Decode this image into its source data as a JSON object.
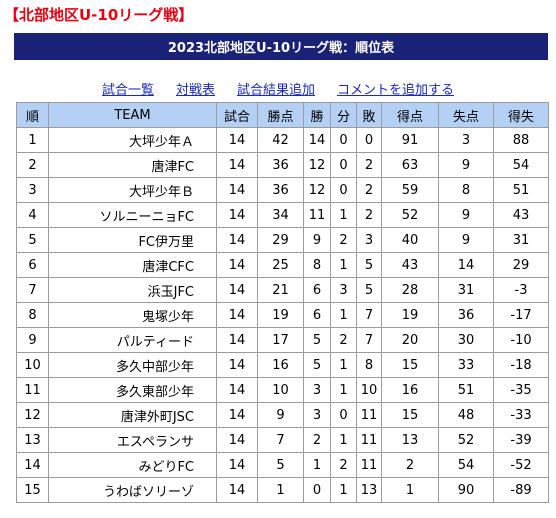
{
  "page_title": "【北部地区U-10リーグ戦】",
  "banner_title": "2023北部地区U-10リーグ戦：順位表",
  "links": [
    "試合一覧",
    "対戦表",
    "試合結果追加",
    "コメントを追加する"
  ],
  "columns": [
    "順",
    "TEAM",
    "試合",
    "勝点",
    "勝",
    "分",
    "敗",
    "得点",
    "失点",
    "得失"
  ],
  "rows": [
    [
      "1",
      "大坪少年Ａ",
      "14",
      "42",
      "14",
      "0",
      "0",
      "91",
      "3",
      "88"
    ],
    [
      "2",
      "唐津FC",
      "14",
      "36",
      "12",
      "0",
      "2",
      "63",
      "9",
      "54"
    ],
    [
      "3",
      "大坪少年Ｂ",
      "14",
      "36",
      "12",
      "0",
      "2",
      "59",
      "8",
      "51"
    ],
    [
      "4",
      "ソルニーニョFC",
      "14",
      "34",
      "11",
      "1",
      "2",
      "52",
      "9",
      "43"
    ],
    [
      "5",
      "FC伊万里",
      "14",
      "29",
      "9",
      "2",
      "3",
      "40",
      "9",
      "31"
    ],
    [
      "6",
      "唐津CFC",
      "14",
      "25",
      "8",
      "1",
      "5",
      "43",
      "14",
      "29"
    ],
    [
      "7",
      "浜玉JFC",
      "14",
      "21",
      "6",
      "3",
      "5",
      "28",
      "31",
      "-3"
    ],
    [
      "8",
      "鬼塚少年",
      "14",
      "19",
      "6",
      "1",
      "7",
      "19",
      "36",
      "-17"
    ],
    [
      "9",
      "パルティード",
      "14",
      "17",
      "5",
      "2",
      "7",
      "20",
      "30",
      "-10"
    ],
    [
      "10",
      "多久中部少年",
      "14",
      "16",
      "5",
      "1",
      "8",
      "15",
      "33",
      "-18"
    ],
    [
      "11",
      "多久東部少年",
      "14",
      "10",
      "3",
      "1",
      "10",
      "16",
      "51",
      "-35"
    ],
    [
      "12",
      "唐津外町JSC",
      "14",
      "9",
      "3",
      "0",
      "11",
      "15",
      "48",
      "-33"
    ],
    [
      "13",
      "エスペランサ",
      "14",
      "7",
      "2",
      "1",
      "11",
      "13",
      "52",
      "-39"
    ],
    [
      "14",
      "みどりFC",
      "14",
      "5",
      "1",
      "2",
      "11",
      "2",
      "54",
      "-52"
    ],
    [
      "15",
      "うわばソリーゾ",
      "14",
      "1",
      "0",
      "1",
      "13",
      "1",
      "90",
      "-89"
    ]
  ]
}
